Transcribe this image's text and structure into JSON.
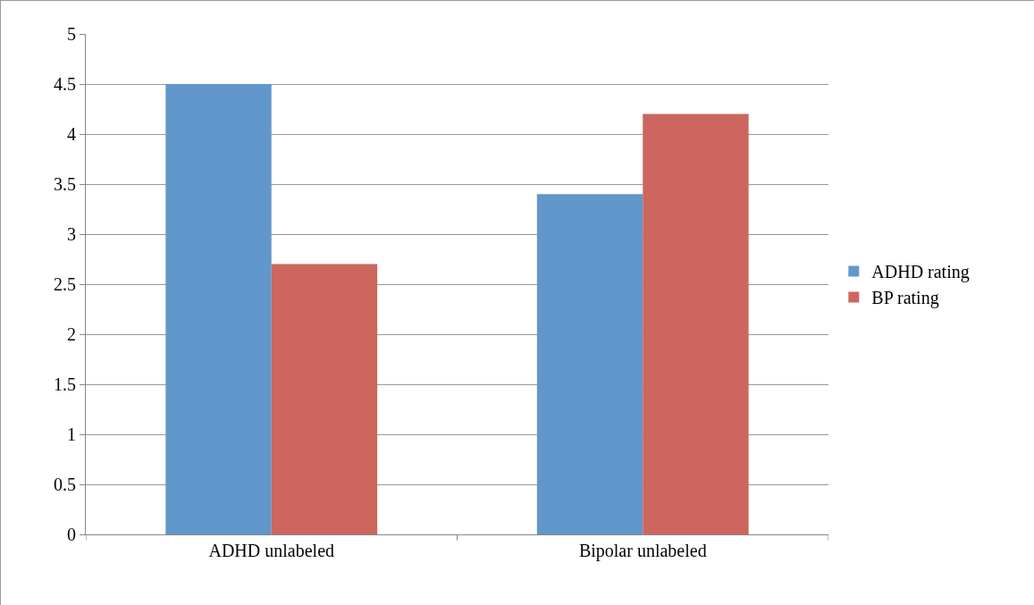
{
  "chart_data": {
    "type": "bar",
    "categories": [
      "ADHD unlabeled",
      "Bipolar unlabeled"
    ],
    "series": [
      {
        "name": "ADHD rating",
        "color": "#6197ca",
        "values": [
          4.5,
          3.4
        ]
      },
      {
        "name": "BP rating",
        "color": "#cc665f",
        "values": [
          2.7,
          4.2
        ]
      }
    ],
    "ylim": [
      0,
      5
    ],
    "yticks": [
      0,
      0.5,
      1,
      1.5,
      2,
      2.5,
      3,
      3.5,
      4,
      4.5,
      5
    ],
    "grid": "y",
    "legend": "right"
  }
}
